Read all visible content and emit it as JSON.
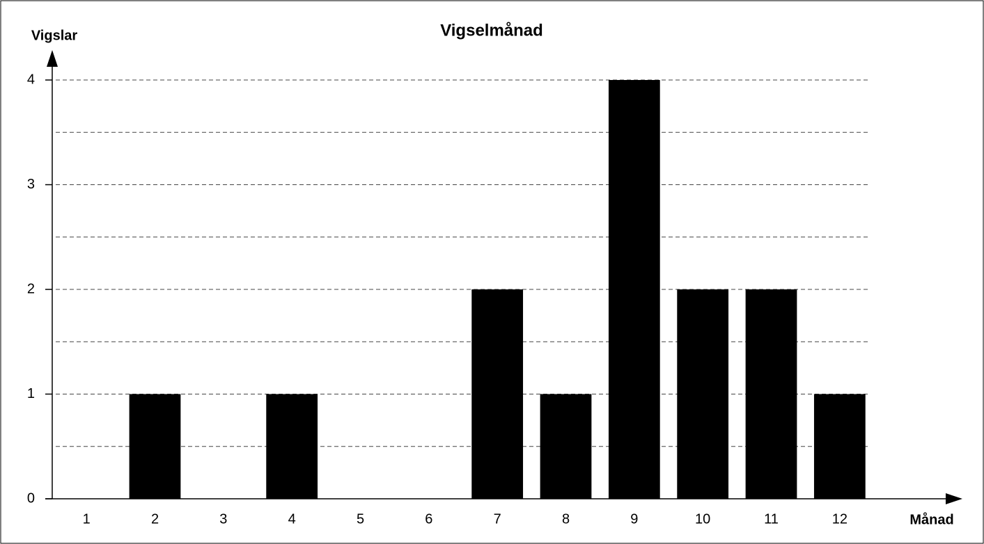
{
  "chart_data": {
    "type": "bar",
    "title": "Vigselmånad",
    "y_label": "Vigslar",
    "x_label": "Månad",
    "categories": [
      "1",
      "2",
      "3",
      "4",
      "5",
      "6",
      "7",
      "8",
      "9",
      "10",
      "11",
      "12"
    ],
    "values": [
      0,
      1,
      0,
      1,
      0,
      0,
      2,
      1,
      4,
      2,
      2,
      1
    ],
    "color": "#000000",
    "ylim": [
      0,
      4
    ],
    "yticks": [
      0,
      1,
      2,
      3,
      4
    ],
    "minor_yticks": [
      0.5,
      1.5,
      2.5,
      3.5
    ],
    "grid": true
  }
}
